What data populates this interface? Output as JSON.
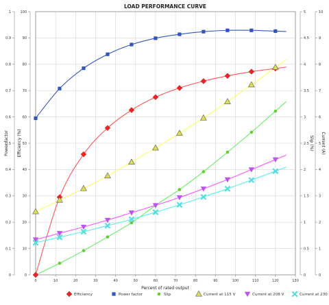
{
  "chart_data": {
    "type": "line",
    "title": "LOAD PERFORMANCE CURVE",
    "xlabel": "Percent of rated output",
    "xlim": [
      0,
      130
    ],
    "x_ticks": [
      0,
      10,
      20,
      30,
      40,
      50,
      60,
      70,
      80,
      90,
      100,
      110,
      120,
      130
    ],
    "grid": true,
    "legend_placement": "bottom",
    "axes": {
      "left_outer": {
        "label": "Power factor",
        "ylim": [
          0,
          1
        ],
        "ticks": [
          "0",
          "0.1",
          "0.2",
          "0.3",
          "0.4",
          "0.5",
          "0.6",
          "0.7",
          "0.8",
          "0.9",
          "1"
        ]
      },
      "left_inner": {
        "label": "Efficiency (%)",
        "ylim": [
          0,
          100
        ],
        "ticks": [
          "0",
          "10",
          "20",
          "30",
          "40",
          "50",
          "60",
          "70",
          "80",
          "90",
          "100"
        ]
      },
      "right_inner": {
        "label": "Slip (%)",
        "ylim": [
          0,
          5
        ],
        "ticks": [
          "0",
          "0.5",
          "1",
          "1.5",
          "2",
          "2.5",
          "3",
          "3.5",
          "4",
          "4.5",
          "5"
        ]
      },
      "right_outer": {
        "label": "Current (A)",
        "ylim": [
          0,
          10
        ],
        "ticks": [
          "0",
          "1",
          "2",
          "3",
          "4",
          "5",
          "6",
          "7",
          "8",
          "9",
          "10"
        ]
      }
    },
    "x": [
      0,
      12,
      24,
      36,
      48,
      60,
      72,
      84,
      96,
      108,
      120
    ],
    "series": [
      {
        "name": "Efficiency",
        "axis": "left_inner",
        "marker": "diamond",
        "color": "#ee2222",
        "curve_color": "#ff5555",
        "values": [
          0,
          29.5,
          45.8,
          55.8,
          62.6,
          67.5,
          71.0,
          73.6,
          75.6,
          77.2,
          78.4
        ]
      },
      {
        "name": "Power factor",
        "axis": "left_outer",
        "marker": "square",
        "color": "#3355bb",
        "curve_color": "#3355bb",
        "values": [
          0.595,
          0.708,
          0.785,
          0.838,
          0.875,
          0.899,
          0.914,
          0.924,
          0.929,
          0.929,
          0.926
        ]
      },
      {
        "name": "Slip",
        "axis": "right_inner",
        "marker": "circle",
        "color": "#66cc33",
        "curve_color": "#66ee66",
        "values": [
          0,
          0.22,
          0.46,
          0.72,
          0.99,
          1.32,
          1.62,
          1.96,
          2.33,
          2.71,
          3.11
        ]
      },
      {
        "name": "Current at 115 V",
        "axis": "right_outer",
        "marker": "triangle-up",
        "color": "#dddd55",
        "curve_color": "#ffff66",
        "values": [
          2.4,
          2.84,
          3.28,
          3.76,
          4.28,
          4.82,
          5.38,
          5.96,
          6.58,
          7.22,
          7.88
        ]
      },
      {
        "name": "Current at 208 V",
        "axis": "right_outer",
        "marker": "triangle-down",
        "color": "#bb55ee",
        "curve_color": "#ff55ff",
        "values": [
          1.34,
          1.58,
          1.82,
          2.08,
          2.36,
          2.64,
          2.94,
          3.27,
          3.62,
          4.0,
          4.38
        ]
      },
      {
        "name": "Current at 230 V",
        "axis": "right_outer",
        "marker": "x",
        "color": "#55dddd",
        "curve_color": "#55eeee",
        "values": [
          1.22,
          1.43,
          1.64,
          1.87,
          2.11,
          2.38,
          2.66,
          2.96,
          3.27,
          3.6,
          3.94
        ]
      }
    ]
  }
}
